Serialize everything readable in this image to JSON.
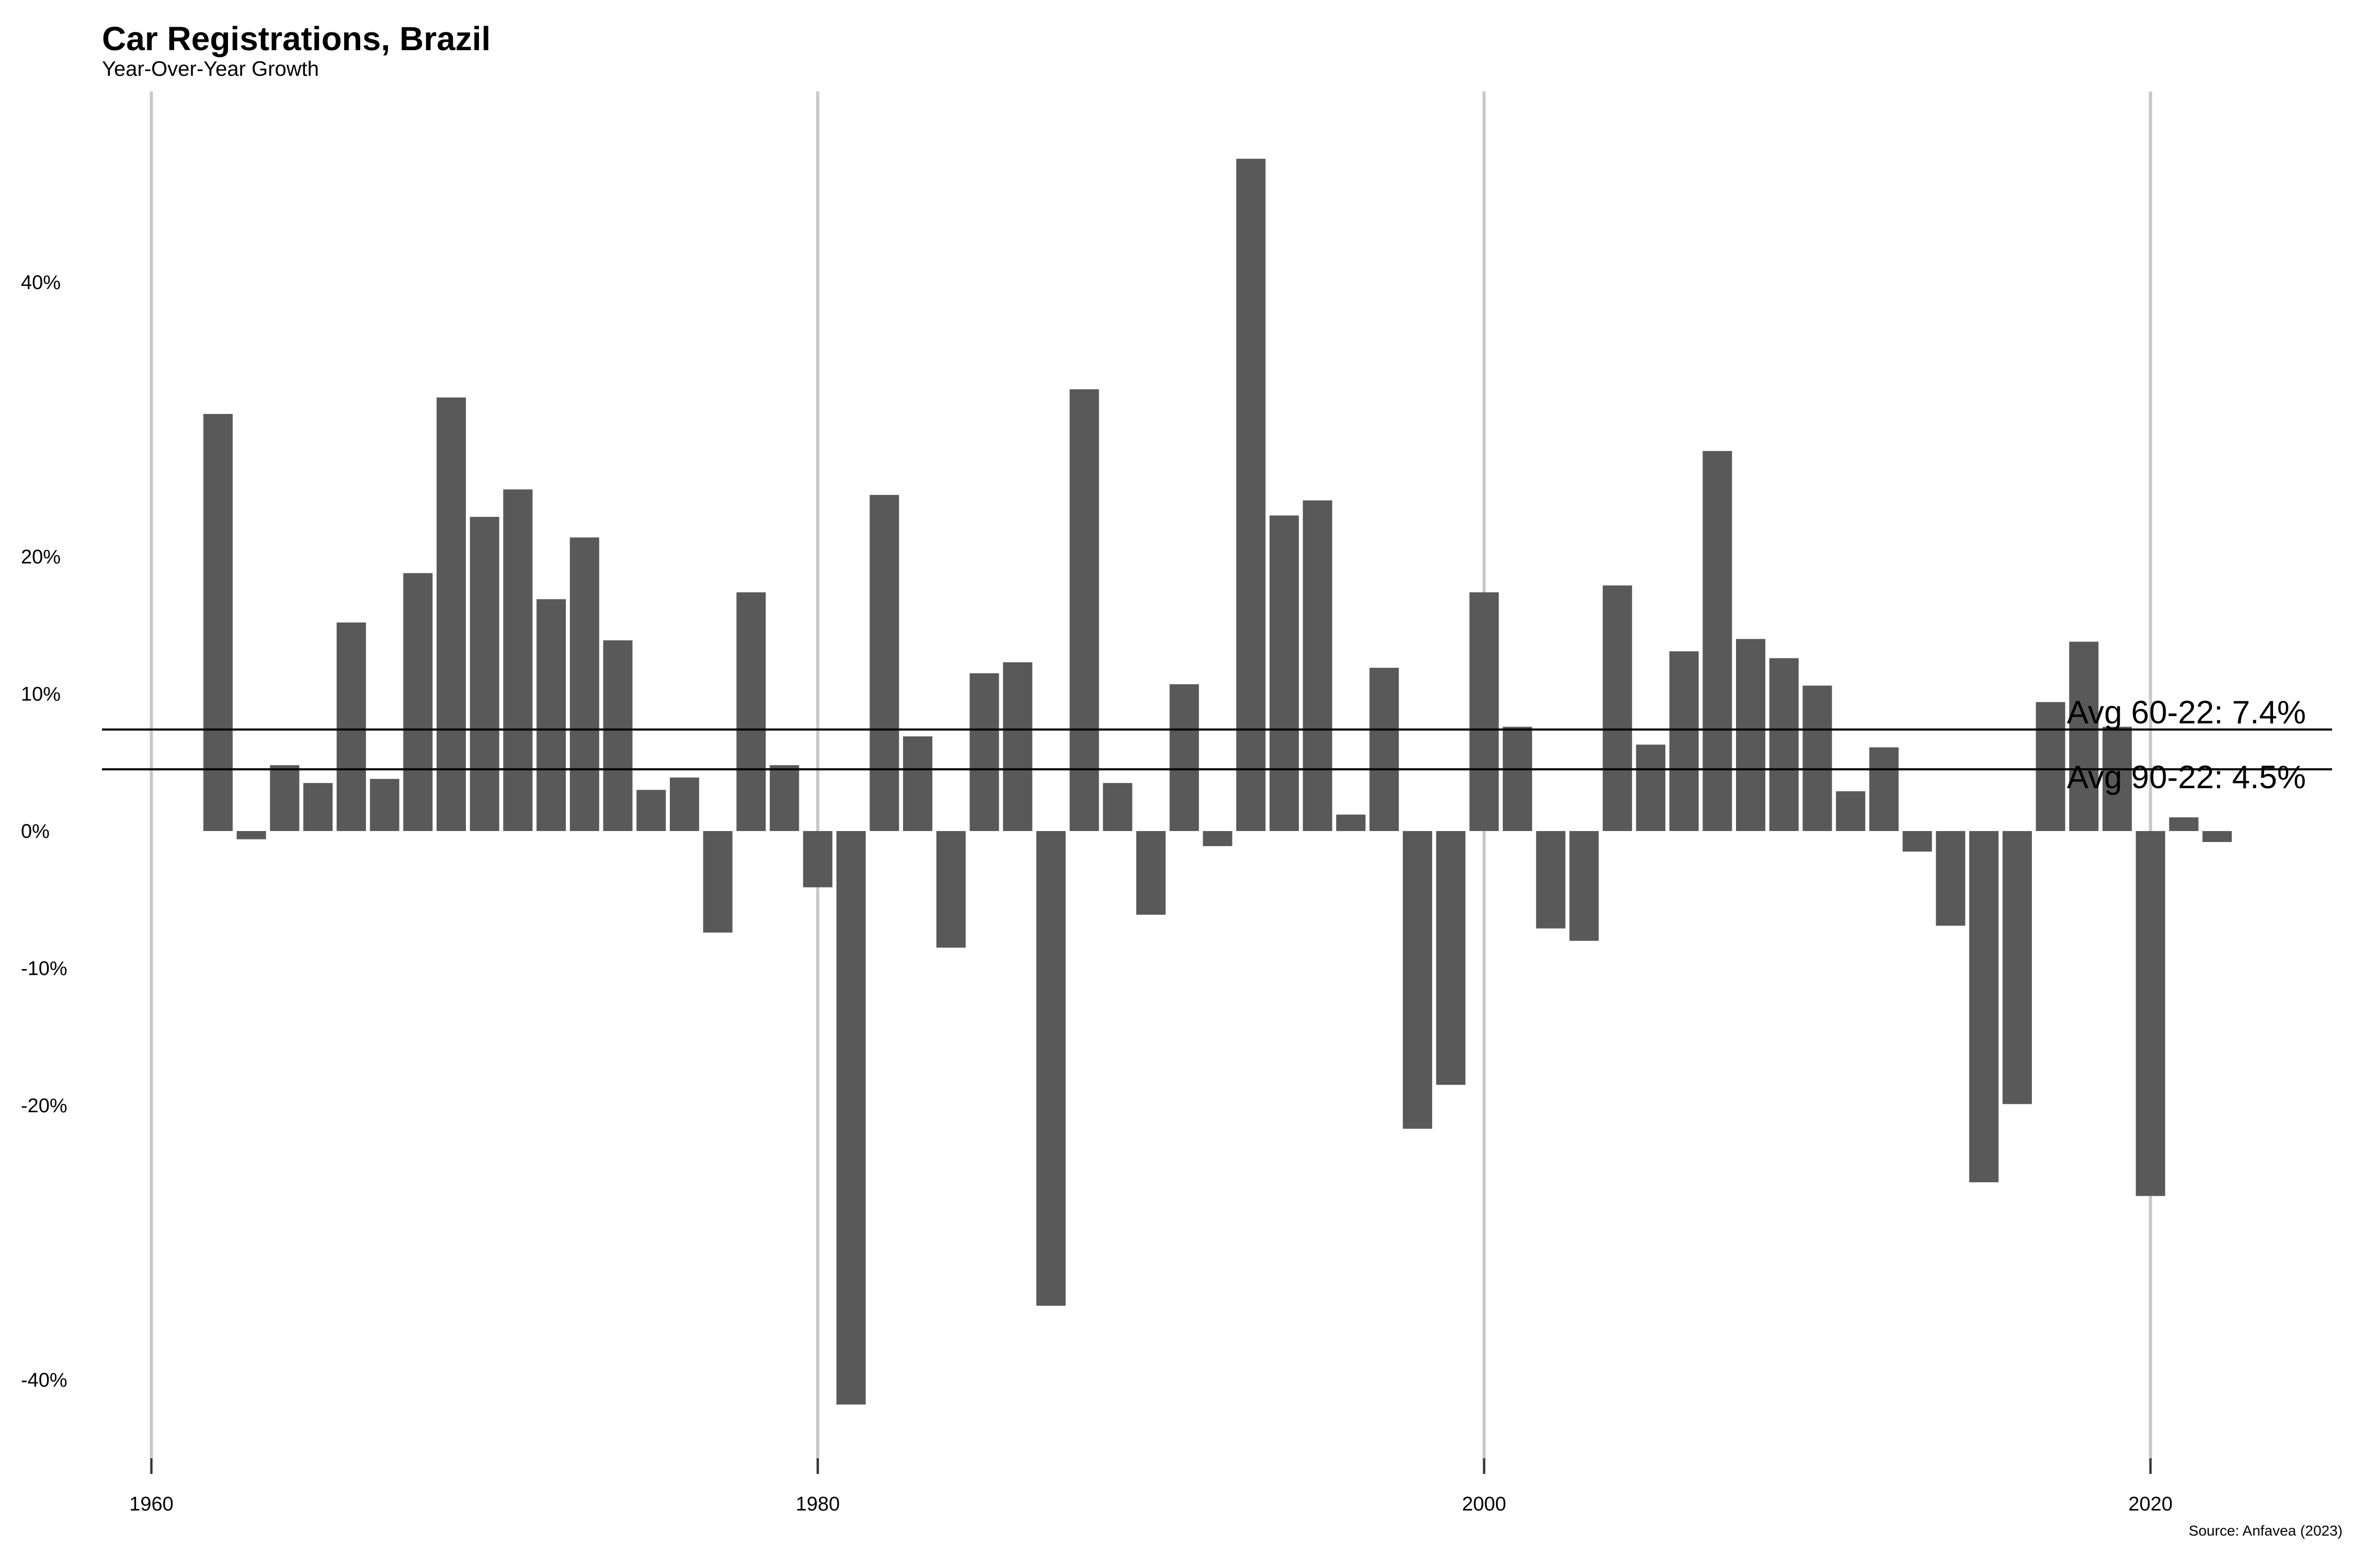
{
  "chart_data": {
    "type": "bar",
    "title": "Car Registrations, Brazil",
    "subtitle": "Year-Over-Year Growth",
    "caption": "Source: Anfavea (2023)",
    "xlabel": "",
    "ylabel": "",
    "xlim": [
      1958.5,
      2025
    ],
    "ylim": [
      -46,
      50
    ],
    "x_ticks": [
      {
        "value": 1960,
        "label": "1960"
      },
      {
        "value": 1980,
        "label": "1980"
      },
      {
        "value": 2000,
        "label": "2000"
      },
      {
        "value": 2020,
        "label": "2020"
      }
    ],
    "y_ticks": [
      {
        "value": 40,
        "label": "40%"
      },
      {
        "value": 20,
        "label": "20%"
      },
      {
        "value": 10,
        "label": "10%"
      },
      {
        "value": 0,
        "label": "0%"
      },
      {
        "value": -10,
        "label": "-10%"
      },
      {
        "value": -20,
        "label": "-20%"
      },
      {
        "value": -40,
        "label": "-40%"
      }
    ],
    "reference_lines": [
      {
        "value": 7.4,
        "label": "Avg 60-22: 7.4%"
      },
      {
        "value": 4.5,
        "label": "Avg 90-22: 4.5%"
      }
    ],
    "grid": "vertical major only",
    "bar_color": "#595959",
    "x": [
      1962,
      1963,
      1964,
      1965,
      1966,
      1967,
      1968,
      1969,
      1970,
      1971,
      1972,
      1973,
      1974,
      1975,
      1976,
      1977,
      1978,
      1979,
      1980,
      1981,
      1982,
      1983,
      1984,
      1985,
      1986,
      1987,
      1988,
      1989,
      1990,
      1991,
      1992,
      1993,
      1994,
      1995,
      1996,
      1997,
      1998,
      1999,
      2000,
      2001,
      2002,
      2003,
      2004,
      2005,
      2006,
      2007,
      2008,
      2009,
      2010,
      2011,
      2012,
      2013,
      2014,
      2015,
      2016,
      2017,
      2018,
      2019,
      2020,
      2021,
      2022
    ],
    "values": [
      30.4,
      -0.6,
      4.8,
      3.5,
      15.2,
      3.8,
      18.8,
      31.6,
      22.9,
      24.9,
      16.9,
      21.4,
      13.9,
      3.0,
      3.9,
      -7.4,
      17.4,
      4.8,
      -4.1,
      -41.8,
      24.5,
      6.9,
      -8.5,
      11.5,
      12.3,
      -34.6,
      32.2,
      3.5,
      -6.1,
      10.7,
      -1.1,
      49.0,
      23.0,
      24.1,
      1.2,
      11.9,
      -21.7,
      -18.5,
      17.4,
      7.6,
      -7.1,
      -8.0,
      17.9,
      6.3,
      13.1,
      27.7,
      14.0,
      12.6,
      10.6,
      2.9,
      6.1,
      -1.5,
      -6.9,
      -25.6,
      -19.9,
      9.4,
      13.8,
      7.6,
      -26.6,
      1.0,
      -0.8
    ]
  }
}
